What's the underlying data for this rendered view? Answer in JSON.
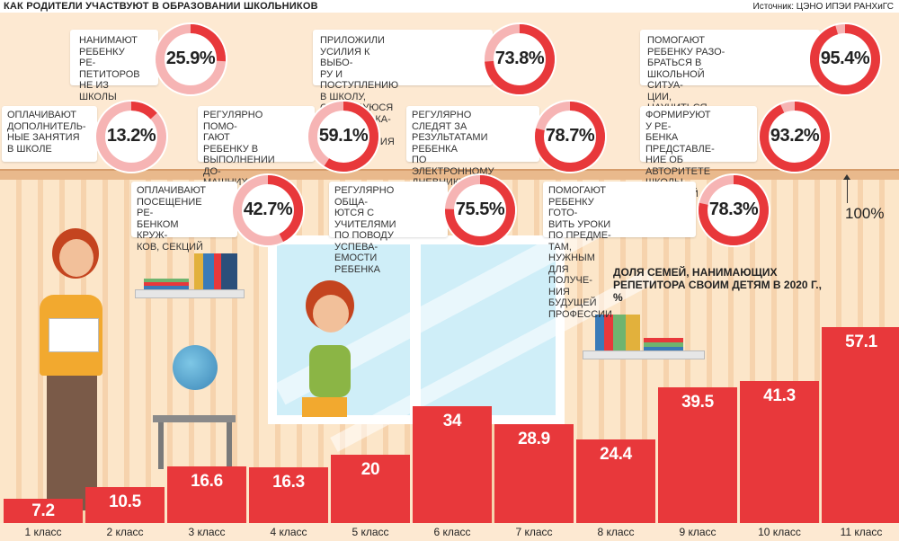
{
  "header": {
    "title": "КАК РОДИТЕЛИ УЧАСТВУЮТ В ОБРАЗОВАНИИ ШКОЛЬНИКОВ",
    "source": "Источник: ЦЭНО ИПЭИ РАНХиГС"
  },
  "stats": [
    {
      "label": "НАНИМАЮТ\nРЕБЕНКУ РЕ-\nПЕТИТОРОВ\nНЕ ИЗ ШКОЛЫ",
      "value_text": "25.9%",
      "value": 25.9
    },
    {
      "label": "ПРИЛОЖИЛИ УСИЛИЯ К ВЫБО-\nРУ И ПОСТУПЛЕНИЮ В ШКОЛУ,\nСЛАВЯЩУЮСЯ ХОРОШИМ КА-\nЧЕСТВОМ ОБРАЗОВАНИЯ",
      "value_text": "73.8%",
      "value": 73.8
    },
    {
      "label": "ПОМОГАЮТ РЕБЕНКУ РАЗО-\nБРАТЬСЯ В ШКОЛЬНОЙ СИТУА-\nЦИИ, НАУЧИТЬСЯ ОБЩАТЬСЯ СО\nСВЕРСТНИКАМИ И УЧИТЕЛЯМИ",
      "value_text": "95.4%",
      "value": 95.4
    },
    {
      "label": "ОПЛАЧИВАЮТ\nДОПОЛНИТЕЛЬ-\nНЫЕ ЗАНЯТИЯ\nВ ШКОЛЕ",
      "value_text": "13.2%",
      "value": 13.2
    },
    {
      "label": "РЕГУЛЯРНО ПОМО-\nГАЮТ РЕБЕНКУ В\nВЫПОЛНЕНИИ ДО-\nМАШНИХ ЗАДАНИЙ",
      "value_text": "59.1%",
      "value": 59.1
    },
    {
      "label": "РЕГУЛЯРНО СЛЕДЯТ ЗА\nРЕЗУЛЬТАТАМИ РЕБЕНКА\nПО ЭЛЕКТРОННОМУ\nДНЕВНИКУ/ЖУРНАЛУ",
      "value_text": "78.7%",
      "value": 78.7
    },
    {
      "label": "ФОРМИРУЮТ У РЕ-\nБЕНКА ПРЕДСТАВЛЕ-\nНИЕ ОБ АВТОРИТЕТЕ\nШКОЛЫ, УЧИТЕЛЕЙ",
      "value_text": "93.2%",
      "value": 93.2
    },
    {
      "label": "ОПЛАЧИВАЮТ\nПОСЕЩЕНИЕ РЕ-\nБЕНКОМ КРУЖ-\nКОВ, СЕКЦИЙ",
      "value_text": "42.7%",
      "value": 42.7
    },
    {
      "label": "РЕГУЛЯРНО ОБЩА-\nЮТСЯ С УЧИТЕЛЯМИ\nПО ПОВОДУ УСПЕВА-\nЕМОСТИ РЕБЕНКА",
      "value_text": "75.5%",
      "value": 75.5
    },
    {
      "label": "ПОМОГАЮТ РЕБЕНКУ ГОТО-\nВИТЬ УРОКИ ПО ПРЕДМЕ-\nТАМ, НУЖНЫМ ДЛЯ ПОЛУЧЕ-\nНИЯ БУДУЩЕЙ ПРОФЕССИИ",
      "value_text": "78.3%",
      "value": 78.3
    }
  ],
  "scale_label": "100%",
  "colors": {
    "accent": "#e8383b",
    "ring_bg": "#f6b4b4",
    "wall": "#fce6c9"
  },
  "chart_data": {
    "type": "bar",
    "title": "ДОЛЯ СЕМЕЙ, НАНИМАЮЩИХ\nРЕПЕТИТОРА СВОИМ ДЕТЯМ В 2020 Г., %",
    "categories": [
      "1 класс",
      "2 класс",
      "3 класс",
      "4 класс",
      "5 класс",
      "6 класс",
      "7 класс",
      "8 класс",
      "9 класс",
      "10 класс",
      "11 класс"
    ],
    "values": [
      7.2,
      10.5,
      16.6,
      16.3,
      20,
      34,
      28.9,
      24.4,
      39.5,
      41.3,
      57.1
    ],
    "value_labels": [
      "7.2",
      "10.5",
      "16.6",
      "16.3",
      "20",
      "34",
      "28.9",
      "24.4",
      "39.5",
      "41.3",
      "57.1"
    ],
    "ylim": [
      0,
      57.1
    ],
    "color": "#e8383b"
  }
}
